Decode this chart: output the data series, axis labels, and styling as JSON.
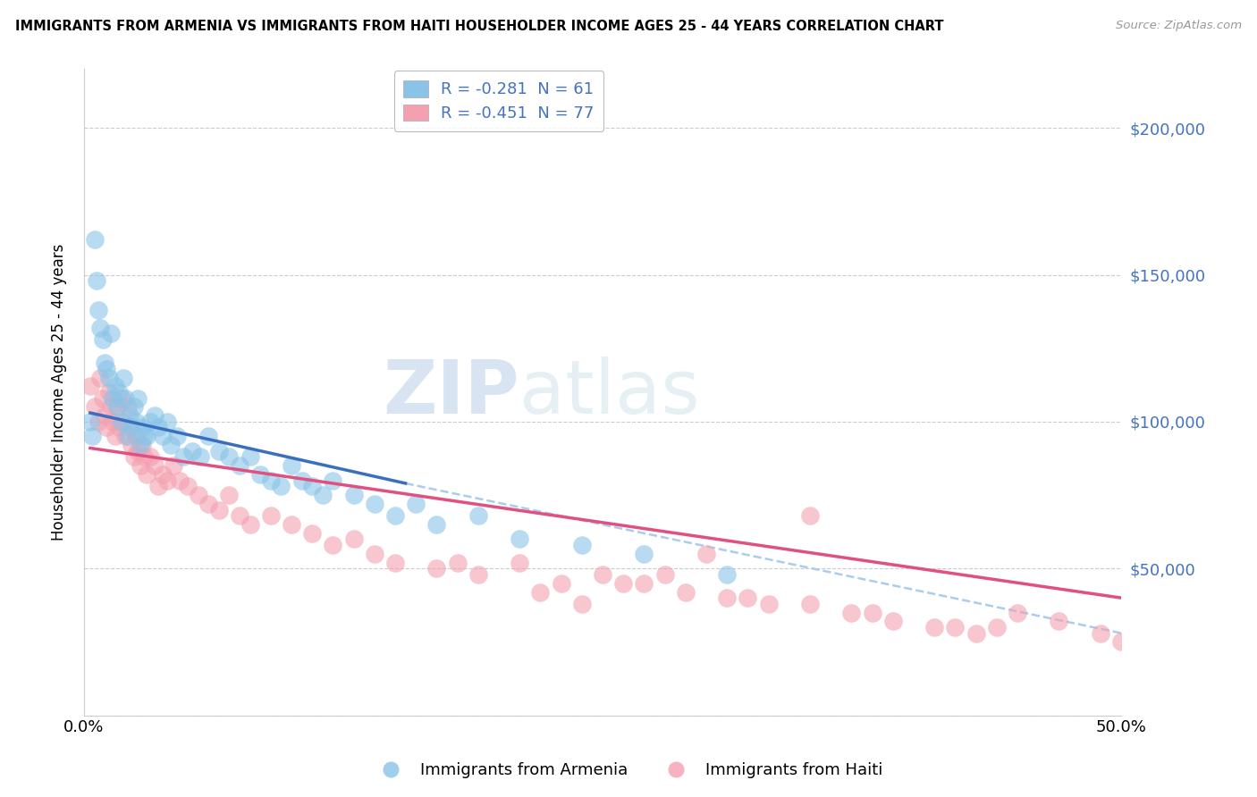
{
  "title": "IMMIGRANTS FROM ARMENIA VS IMMIGRANTS FROM HAITI HOUSEHOLDER INCOME AGES 25 - 44 YEARS CORRELATION CHART",
  "source": "Source: ZipAtlas.com",
  "ylabel": "Householder Income Ages 25 - 44 years",
  "armenia_R": -0.281,
  "armenia_N": 61,
  "haiti_R": -0.451,
  "haiti_N": 77,
  "armenia_color": "#89c4e8",
  "haiti_color": "#f4a0b0",
  "armenia_line_color": "#3a6fbf",
  "haiti_line_color": "#e05080",
  "dashed_line_color": "#aaccee",
  "watermark_zip": "ZIP",
  "watermark_atlas": "atlas",
  "xlim": [
    0.0,
    0.5
  ],
  "ylim": [
    0,
    220000
  ],
  "armenia_x": [
    0.003,
    0.004,
    0.005,
    0.006,
    0.007,
    0.008,
    0.009,
    0.01,
    0.011,
    0.012,
    0.013,
    0.014,
    0.015,
    0.016,
    0.017,
    0.018,
    0.019,
    0.02,
    0.021,
    0.022,
    0.023,
    0.024,
    0.025,
    0.026,
    0.027,
    0.028,
    0.029,
    0.03,
    0.032,
    0.034,
    0.036,
    0.038,
    0.04,
    0.042,
    0.045,
    0.048,
    0.052,
    0.056,
    0.06,
    0.065,
    0.07,
    0.075,
    0.08,
    0.085,
    0.09,
    0.095,
    0.1,
    0.105,
    0.11,
    0.115,
    0.12,
    0.13,
    0.14,
    0.15,
    0.16,
    0.17,
    0.19,
    0.21,
    0.24,
    0.27,
    0.31
  ],
  "armenia_y": [
    100000,
    95000,
    162000,
    148000,
    138000,
    132000,
    128000,
    120000,
    118000,
    115000,
    130000,
    108000,
    112000,
    105000,
    110000,
    100000,
    115000,
    108000,
    95000,
    102000,
    98000,
    105000,
    100000,
    108000,
    92000,
    98000,
    95000,
    95000,
    100000,
    102000,
    98000,
    95000,
    100000,
    92000,
    95000,
    88000,
    90000,
    88000,
    95000,
    90000,
    88000,
    85000,
    88000,
    82000,
    80000,
    78000,
    85000,
    80000,
    78000,
    75000,
    80000,
    75000,
    72000,
    68000,
    72000,
    65000,
    68000,
    60000,
    58000,
    55000,
    48000
  ],
  "haiti_x": [
    0.003,
    0.005,
    0.007,
    0.008,
    0.009,
    0.01,
    0.011,
    0.012,
    0.013,
    0.014,
    0.015,
    0.016,
    0.017,
    0.018,
    0.019,
    0.02,
    0.021,
    0.022,
    0.023,
    0.024,
    0.025,
    0.026,
    0.027,
    0.028,
    0.029,
    0.03,
    0.032,
    0.034,
    0.036,
    0.038,
    0.04,
    0.043,
    0.046,
    0.05,
    0.055,
    0.06,
    0.065,
    0.07,
    0.075,
    0.08,
    0.09,
    0.1,
    0.11,
    0.12,
    0.13,
    0.14,
    0.15,
    0.17,
    0.19,
    0.21,
    0.23,
    0.25,
    0.27,
    0.29,
    0.31,
    0.33,
    0.35,
    0.37,
    0.39,
    0.41,
    0.43,
    0.45,
    0.47,
    0.49,
    0.5,
    0.3,
    0.22,
    0.35,
    0.28,
    0.18,
    0.42,
    0.38,
    0.52,
    0.26,
    0.32,
    0.24,
    0.44
  ],
  "haiti_y": [
    112000,
    105000,
    100000,
    115000,
    108000,
    102000,
    98000,
    110000,
    105000,
    100000,
    95000,
    105000,
    98000,
    108000,
    100000,
    95000,
    105000,
    98000,
    92000,
    88000,
    95000,
    90000,
    85000,
    92000,
    88000,
    82000,
    88000,
    85000,
    78000,
    82000,
    80000,
    85000,
    80000,
    78000,
    75000,
    72000,
    70000,
    75000,
    68000,
    65000,
    68000,
    65000,
    62000,
    58000,
    60000,
    55000,
    52000,
    50000,
    48000,
    52000,
    45000,
    48000,
    45000,
    42000,
    40000,
    38000,
    68000,
    35000,
    32000,
    30000,
    28000,
    35000,
    32000,
    28000,
    25000,
    55000,
    42000,
    38000,
    48000,
    52000,
    30000,
    35000,
    25000,
    45000,
    40000,
    38000,
    30000
  ],
  "arm_line_x0": 0.003,
  "arm_line_x1": 0.155,
  "arm_line_y0": 103000,
  "arm_line_y1": 79000,
  "hai_line_x0": 0.003,
  "hai_line_x1": 0.5,
  "hai_line_y0": 91000,
  "hai_line_y1": 40000,
  "dash_line_x0": 0.155,
  "dash_line_x1": 0.5,
  "dash_line_y0": 79000,
  "dash_line_y1": 28000
}
